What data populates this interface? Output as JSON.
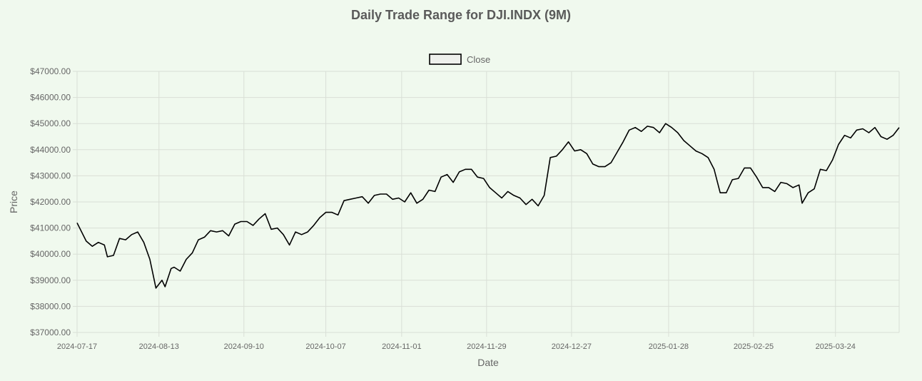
{
  "chart_data": {
    "type": "line",
    "title": "Daily Trade Range for DJI.INDX (9M)",
    "xlabel": "Date",
    "ylabel": "Price",
    "ylim": [
      37000,
      47000
    ],
    "xlim": [
      "2024-07-17",
      "2025-04-14"
    ],
    "yticks": [
      37000,
      38000,
      39000,
      40000,
      41000,
      42000,
      43000,
      44000,
      45000,
      46000,
      47000
    ],
    "ytick_labels": [
      "$37000.00",
      "$38000.00",
      "$39000.00",
      "$40000.00",
      "$41000.00",
      "$42000.00",
      "$43000.00",
      "$44000.00",
      "$45000.00",
      "$46000.00",
      "$47000.00"
    ],
    "xticks": [
      "2024-07-17",
      "2024-08-13",
      "2024-09-10",
      "2024-10-07",
      "2024-11-01",
      "2024-11-29",
      "2024-12-27",
      "2025-01-28",
      "2025-02-25",
      "2025-03-24"
    ],
    "grid": true,
    "legend_position": "top-center",
    "series": [
      {
        "name": "Close",
        "color": "#000000",
        "dash": false,
        "points": [
          [
            "2024-07-17",
            41200
          ],
          [
            "2024-07-20",
            40500
          ],
          [
            "2024-07-22",
            40300
          ],
          [
            "2024-07-24",
            40450
          ],
          [
            "2024-07-26",
            40350
          ],
          [
            "2024-07-27",
            39900
          ],
          [
            "2024-07-29",
            39950
          ],
          [
            "2024-07-31",
            40600
          ],
          [
            "2024-08-02",
            40550
          ],
          [
            "2024-08-04",
            40750
          ],
          [
            "2024-08-06",
            40850
          ],
          [
            "2024-08-08",
            40450
          ],
          [
            "2024-08-10",
            39800
          ],
          [
            "2024-08-12",
            38700
          ],
          [
            "2024-08-14",
            39000
          ],
          [
            "2024-08-15",
            38750
          ],
          [
            "2024-08-17",
            39450
          ],
          [
            "2024-08-18",
            39500
          ],
          [
            "2024-08-20",
            39350
          ],
          [
            "2024-08-22",
            39800
          ],
          [
            "2024-08-24",
            40050
          ],
          [
            "2024-08-26",
            40550
          ],
          [
            "2024-08-28",
            40650
          ],
          [
            "2024-08-30",
            40900
          ],
          [
            "2024-09-01",
            40850
          ],
          [
            "2024-09-03",
            40900
          ],
          [
            "2024-09-05",
            40700
          ],
          [
            "2024-09-07",
            41150
          ],
          [
            "2024-09-09",
            41250
          ],
          [
            "2024-09-11",
            41250
          ],
          [
            "2024-09-13",
            41100
          ],
          [
            "2024-09-15",
            41350
          ],
          [
            "2024-09-17",
            41550
          ],
          [
            "2024-09-19",
            40950
          ],
          [
            "2024-09-21",
            41000
          ],
          [
            "2024-09-23",
            40750
          ],
          [
            "2024-09-25",
            40350
          ],
          [
            "2024-09-27",
            40850
          ],
          [
            "2024-09-29",
            40750
          ],
          [
            "2024-10-01",
            40850
          ],
          [
            "2024-10-03",
            41100
          ],
          [
            "2024-10-05",
            41400
          ],
          [
            "2024-10-07",
            41600
          ],
          [
            "2024-10-09",
            41600
          ],
          [
            "2024-10-11",
            41500
          ],
          [
            "2024-10-13",
            42050
          ],
          [
            "2024-10-15",
            42100
          ],
          [
            "2024-10-17",
            42150
          ],
          [
            "2024-10-19",
            42200
          ],
          [
            "2024-10-21",
            41950
          ],
          [
            "2024-10-23",
            42250
          ],
          [
            "2024-10-25",
            42300
          ],
          [
            "2024-10-27",
            42300
          ],
          [
            "2024-10-29",
            42100
          ],
          [
            "2024-10-31",
            42150
          ],
          [
            "2024-11-02",
            42000
          ],
          [
            "2024-11-04",
            42350
          ],
          [
            "2024-11-06",
            41950
          ],
          [
            "2024-11-08",
            42100
          ],
          [
            "2024-11-10",
            42450
          ],
          [
            "2024-11-12",
            42400
          ],
          [
            "2024-11-14",
            42950
          ],
          [
            "2024-11-16",
            43050
          ],
          [
            "2024-11-18",
            42750
          ],
          [
            "2024-11-20",
            43150
          ],
          [
            "2024-11-22",
            43250
          ],
          [
            "2024-11-24",
            43250
          ],
          [
            "2024-11-26",
            42950
          ],
          [
            "2024-11-28",
            42900
          ],
          [
            "2024-11-30",
            42550
          ],
          [
            "2024-12-02",
            42350
          ],
          [
            "2024-12-04",
            42150
          ],
          [
            "2024-12-06",
            42400
          ],
          [
            "2024-12-08",
            42250
          ],
          [
            "2024-12-10",
            42150
          ],
          [
            "2024-12-12",
            41900
          ],
          [
            "2024-12-14",
            42100
          ],
          [
            "2024-12-16",
            41850
          ],
          [
            "2024-12-18",
            42250
          ],
          [
            "2024-12-20",
            43700
          ],
          [
            "2024-12-22",
            43750
          ],
          [
            "2024-12-24",
            44000
          ],
          [
            "2024-12-26",
            44300
          ],
          [
            "2024-12-28",
            43950
          ],
          [
            "2024-12-30",
            44000
          ],
          [
            "2025-01-01",
            43850
          ],
          [
            "2025-01-03",
            43450
          ],
          [
            "2025-01-05",
            43350
          ],
          [
            "2025-01-07",
            43350
          ],
          [
            "2025-01-09",
            43500
          ],
          [
            "2025-01-11",
            43900
          ],
          [
            "2025-01-13",
            44300
          ],
          [
            "2025-01-15",
            44750
          ],
          [
            "2025-01-17",
            44850
          ],
          [
            "2025-01-19",
            44700
          ],
          [
            "2025-01-21",
            44900
          ],
          [
            "2025-01-23",
            44850
          ],
          [
            "2025-01-25",
            44650
          ],
          [
            "2025-01-27",
            45000
          ],
          [
            "2025-01-29",
            44850
          ],
          [
            "2025-01-31",
            44650
          ],
          [
            "2025-02-02",
            44350
          ],
          [
            "2025-02-04",
            44150
          ],
          [
            "2025-02-06",
            43950
          ],
          [
            "2025-02-08",
            43850
          ],
          [
            "2025-02-10",
            43700
          ],
          [
            "2025-02-12",
            43250
          ],
          [
            "2025-02-14",
            42350
          ],
          [
            "2025-02-16",
            42350
          ],
          [
            "2025-02-18",
            42850
          ],
          [
            "2025-02-20",
            42900
          ],
          [
            "2025-02-22",
            43300
          ],
          [
            "2025-02-24",
            43300
          ],
          [
            "2025-02-26",
            42950
          ],
          [
            "2025-02-28",
            42550
          ],
          [
            "2025-03-02",
            42550
          ],
          [
            "2025-03-04",
            42400
          ],
          [
            "2025-03-06",
            42750
          ],
          [
            "2025-03-08",
            42700
          ],
          [
            "2025-03-10",
            42550
          ],
          [
            "2025-03-12",
            42650
          ],
          [
            "2025-03-13",
            41950
          ],
          [
            "2025-03-15",
            42350
          ],
          [
            "2025-03-17",
            42500
          ],
          [
            "2025-03-19",
            43250
          ],
          [
            "2025-03-21",
            43200
          ],
          [
            "2025-03-23",
            43600
          ],
          [
            "2025-03-25",
            44200
          ],
          [
            "2025-03-27",
            44550
          ],
          [
            "2025-03-29",
            44450
          ],
          [
            "2025-03-31",
            44750
          ],
          [
            "2025-04-02",
            44800
          ],
          [
            "2025-04-04",
            44650
          ],
          [
            "2025-04-06",
            44850
          ],
          [
            "2025-04-08",
            44500
          ],
          [
            "2025-04-10",
            44400
          ],
          [
            "2025-04-12",
            44550
          ],
          [
            "2025-04-14",
            44850
          ]
        ]
      }
    ]
  }
}
